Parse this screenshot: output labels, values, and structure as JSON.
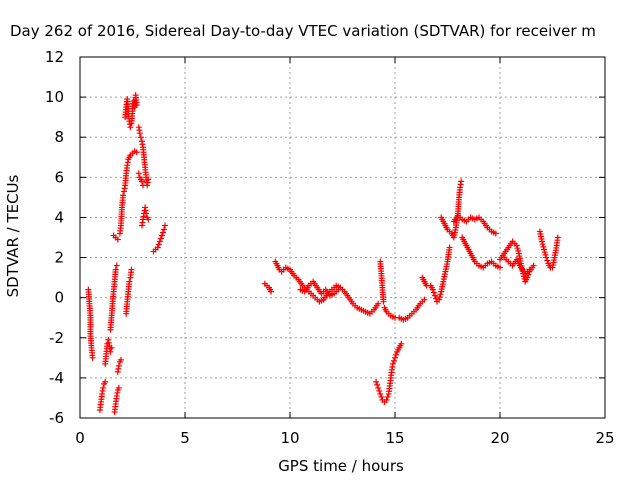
{
  "chart_data": {
    "type": "scatter",
    "title": "Day 262 of 2016, Sidereal Day-to-day VTEC variation (SDTVAR) for receiver m",
    "xlabel": "GPS time / hours",
    "ylabel": "SDTVAR / TECUs",
    "xlim": [
      0,
      25
    ],
    "ylim": [
      -6,
      12
    ],
    "xticks": [
      "0",
      "5",
      "10",
      "15",
      "20",
      "25"
    ],
    "yticks": [
      "-6",
      "-4",
      "-2",
      "0",
      "2",
      "4",
      "6",
      "8",
      "10",
      "12"
    ],
    "grid": true,
    "marker": "+",
    "color": "#ff0000",
    "segments": [
      [
        [
          0.4,
          0.4
        ],
        [
          0.45,
          -0.3
        ],
        [
          0.5,
          -1.0
        ],
        [
          0.5,
          -1.8
        ],
        [
          0.55,
          -2.5
        ],
        [
          0.6,
          -3.0
        ]
      ],
      [
        [
          0.95,
          -5.6
        ],
        [
          1.0,
          -5.2
        ],
        [
          1.05,
          -4.8
        ],
        [
          1.1,
          -4.5
        ],
        [
          1.15,
          -4.3
        ],
        [
          1.2,
          -4.2
        ]
      ],
      [
        [
          1.2,
          -3.3
        ],
        [
          1.25,
          -2.8
        ],
        [
          1.3,
          -2.3
        ],
        [
          1.35,
          -2.1
        ],
        [
          1.4,
          -2.4
        ],
        [
          1.45,
          -2.7
        ],
        [
          1.5,
          -2.5
        ]
      ],
      [
        [
          1.45,
          -1.6
        ],
        [
          1.5,
          -1.0
        ],
        [
          1.55,
          -0.3
        ],
        [
          1.6,
          0.3
        ],
        [
          1.65,
          0.8
        ],
        [
          1.7,
          1.4
        ],
        [
          1.75,
          1.6
        ]
      ],
      [
        [
          1.6,
          3.1
        ],
        [
          1.7,
          3.0
        ],
        [
          1.8,
          2.9
        ]
      ],
      [
        [
          1.65,
          -5.7
        ],
        [
          1.7,
          -5.3
        ],
        [
          1.75,
          -4.9
        ],
        [
          1.8,
          -4.6
        ],
        [
          1.85,
          -4.5
        ]
      ],
      [
        [
          1.8,
          -3.7
        ],
        [
          1.85,
          -3.4
        ],
        [
          1.9,
          -3.2
        ],
        [
          1.95,
          -3.1
        ]
      ],
      [
        [
          1.9,
          3.2
        ],
        [
          1.95,
          3.6
        ],
        [
          2.0,
          4.5
        ],
        [
          2.05,
          5.1
        ],
        [
          2.1,
          5.3
        ],
        [
          2.15,
          5.6
        ],
        [
          2.2,
          6.2
        ],
        [
          2.25,
          6.6
        ],
        [
          2.3,
          6.9
        ],
        [
          2.35,
          7.0
        ],
        [
          2.4,
          7.1
        ],
        [
          2.5,
          7.2
        ],
        [
          2.6,
          7.3
        ],
        [
          2.7,
          7.25
        ]
      ],
      [
        [
          2.15,
          9.0
        ],
        [
          2.2,
          9.5
        ],
        [
          2.25,
          9.9
        ],
        [
          2.3,
          9.3
        ],
        [
          2.35,
          8.8
        ],
        [
          2.4,
          8.5
        ],
        [
          2.45,
          8.7
        ],
        [
          2.5,
          9.3
        ],
        [
          2.55,
          9.8
        ],
        [
          2.6,
          9.5
        ],
        [
          2.65,
          10.1
        ],
        [
          2.7,
          9.6
        ]
      ],
      [
        [
          2.2,
          -0.8
        ],
        [
          2.25,
          -0.2
        ],
        [
          2.3,
          0.3
        ],
        [
          2.35,
          0.8
        ],
        [
          2.4,
          1.0
        ],
        [
          2.45,
          1.4
        ]
      ],
      [
        [
          2.8,
          8.5
        ],
        [
          2.85,
          8.2
        ],
        [
          2.9,
          8.0
        ],
        [
          2.95,
          7.8
        ],
        [
          3.0,
          7.5
        ],
        [
          3.05,
          7.0
        ],
        [
          3.1,
          6.5
        ],
        [
          3.15,
          6.0
        ],
        [
          3.2,
          5.6
        ],
        [
          3.25,
          5.9
        ]
      ],
      [
        [
          2.8,
          6.2
        ],
        [
          2.85,
          6.0
        ],
        [
          2.9,
          5.9
        ],
        [
          2.95,
          5.8
        ],
        [
          3.0,
          5.6
        ]
      ],
      [
        [
          2.95,
          3.6
        ],
        [
          3.0,
          3.9
        ],
        [
          3.05,
          4.2
        ],
        [
          3.1,
          4.5
        ],
        [
          3.15,
          4.2
        ],
        [
          3.2,
          4.0
        ],
        [
          3.25,
          3.9
        ]
      ],
      [
        [
          3.5,
          2.3
        ],
        [
          3.6,
          2.4
        ],
        [
          3.7,
          2.5
        ],
        [
          3.8,
          2.8
        ],
        [
          3.9,
          3.1
        ],
        [
          4.0,
          3.4
        ],
        [
          4.05,
          3.6
        ]
      ],
      [
        [
          8.8,
          0.7
        ],
        [
          8.9,
          0.6
        ],
        [
          9.0,
          0.5
        ],
        [
          9.1,
          0.3
        ]
      ],
      [
        [
          9.3,
          1.8
        ],
        [
          9.4,
          1.6
        ],
        [
          9.5,
          1.4
        ],
        [
          9.6,
          1.3
        ],
        [
          9.8,
          1.5
        ],
        [
          10.0,
          1.4
        ],
        [
          10.2,
          1.1
        ],
        [
          10.4,
          0.9
        ],
        [
          10.6,
          0.6
        ],
        [
          10.8,
          0.4
        ],
        [
          11.0,
          0.2
        ],
        [
          11.2,
          0.0
        ],
        [
          11.4,
          -0.2
        ],
        [
          11.6,
          -0.1
        ],
        [
          11.8,
          0.2
        ],
        [
          12.0,
          0.4
        ],
        [
          12.2,
          0.6
        ],
        [
          12.4,
          0.5
        ],
        [
          12.6,
          0.3
        ],
        [
          12.8,
          0.0
        ],
        [
          13.0,
          -0.3
        ],
        [
          13.2,
          -0.5
        ],
        [
          13.4,
          -0.6
        ],
        [
          13.6,
          -0.7
        ],
        [
          13.8,
          -0.8
        ],
        [
          14.0,
          -0.6
        ],
        [
          14.2,
          -0.3
        ]
      ],
      [
        [
          10.5,
          0.4
        ],
        [
          10.7,
          0.3
        ],
        [
          10.9,
          0.6
        ],
        [
          11.1,
          0.8
        ],
        [
          11.3,
          0.5
        ],
        [
          11.5,
          0.2
        ],
        [
          11.7,
          0.4
        ],
        [
          11.9,
          0.1
        ],
        [
          12.1,
          0.2
        ],
        [
          12.3,
          0.4
        ]
      ],
      [
        [
          14.1,
          -4.2
        ],
        [
          14.2,
          -4.5
        ],
        [
          14.3,
          -4.8
        ],
        [
          14.4,
          -5.1
        ],
        [
          14.5,
          -5.2
        ],
        [
          14.6,
          -5.1
        ],
        [
          14.7,
          -4.8
        ],
        [
          14.75,
          -4.4
        ],
        [
          14.8,
          -4.0
        ],
        [
          14.85,
          -3.6
        ],
        [
          14.9,
          -3.3
        ],
        [
          15.0,
          -3.0
        ],
        [
          15.1,
          -2.7
        ],
        [
          15.2,
          -2.5
        ],
        [
          15.3,
          -2.3
        ]
      ],
      [
        [
          14.3,
          1.8
        ],
        [
          14.35,
          1.2
        ],
        [
          14.4,
          0.5
        ],
        [
          14.45,
          -0.2
        ]
      ],
      [
        [
          14.5,
          -0.5
        ],
        [
          14.6,
          -0.7
        ],
        [
          14.8,
          -0.9
        ],
        [
          15.0,
          -1.0
        ],
        [
          15.2,
          -1.0
        ],
        [
          15.4,
          -1.1
        ],
        [
          15.6,
          -1.0
        ],
        [
          15.8,
          -0.8
        ],
        [
          16.0,
          -0.6
        ],
        [
          16.2,
          -0.3
        ],
        [
          16.4,
          -0.1
        ]
      ],
      [
        [
          16.3,
          1.0
        ],
        [
          16.4,
          0.8
        ],
        [
          16.5,
          0.6
        ]
      ],
      [
        [
          16.7,
          0.6
        ],
        [
          16.8,
          0.4
        ],
        [
          16.9,
          0.1
        ],
        [
          17.0,
          -0.2
        ],
        [
          17.1,
          -0.1
        ],
        [
          17.2,
          0.3
        ],
        [
          17.3,
          0.8
        ],
        [
          17.4,
          1.3
        ],
        [
          17.5,
          1.8
        ],
        [
          17.6,
          2.5
        ]
      ],
      [
        [
          17.2,
          4.0
        ],
        [
          17.3,
          3.8
        ],
        [
          17.4,
          3.6
        ],
        [
          17.5,
          3.4
        ],
        [
          17.6,
          3.3
        ],
        [
          17.7,
          3.2
        ],
        [
          17.8,
          3.0
        ],
        [
          17.9,
          3.5
        ],
        [
          18.0,
          4.2
        ],
        [
          18.05,
          5.0
        ],
        [
          18.1,
          5.5
        ],
        [
          18.15,
          5.8
        ]
      ],
      [
        [
          17.8,
          3.8
        ],
        [
          18.0,
          4.1
        ],
        [
          18.2,
          3.9
        ],
        [
          18.4,
          3.8
        ],
        [
          18.6,
          4.0
        ],
        [
          18.8,
          3.9
        ],
        [
          19.0,
          4.0
        ],
        [
          19.2,
          3.8
        ],
        [
          19.4,
          3.5
        ],
        [
          19.6,
          3.3
        ],
        [
          19.8,
          3.2
        ]
      ],
      [
        [
          18.2,
          3.0
        ],
        [
          18.4,
          2.6
        ],
        [
          18.6,
          2.2
        ],
        [
          18.8,
          1.8
        ],
        [
          19.0,
          1.6
        ],
        [
          19.2,
          1.5
        ],
        [
          19.4,
          1.7
        ],
        [
          19.6,
          1.8
        ],
        [
          19.8,
          1.6
        ],
        [
          20.0,
          1.5
        ]
      ],
      [
        [
          20.0,
          1.9
        ],
        [
          20.2,
          2.2
        ],
        [
          20.4,
          2.5
        ],
        [
          20.6,
          2.8
        ],
        [
          20.8,
          2.6
        ],
        [
          20.9,
          2.2
        ],
        [
          21.0,
          1.7
        ],
        [
          21.1,
          1.2
        ],
        [
          21.2,
          0.8
        ],
        [
          21.3,
          1.0
        ],
        [
          21.4,
          1.3
        ],
        [
          21.6,
          1.6
        ]
      ],
      [
        [
          20.2,
          2.0
        ],
        [
          20.4,
          1.8
        ],
        [
          20.6,
          1.6
        ],
        [
          20.8,
          1.9
        ],
        [
          21.0,
          1.5
        ],
        [
          21.2,
          1.2
        ],
        [
          21.4,
          1.4
        ]
      ],
      [
        [
          21.9,
          3.3
        ],
        [
          22.0,
          2.8
        ],
        [
          22.1,
          2.4
        ],
        [
          22.2,
          2.0
        ],
        [
          22.3,
          1.7
        ],
        [
          22.4,
          1.5
        ],
        [
          22.5,
          1.5
        ],
        [
          22.6,
          2.0
        ],
        [
          22.7,
          2.6
        ],
        [
          22.75,
          3.0
        ]
      ]
    ]
  }
}
